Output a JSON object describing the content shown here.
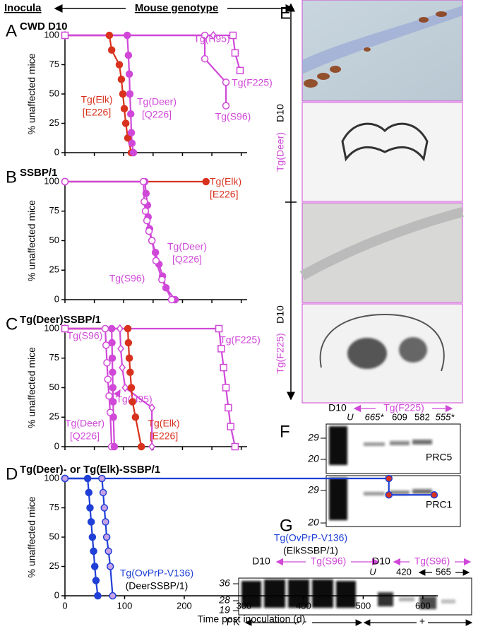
{
  "header": {
    "inocula": "Inocula",
    "genotype": "Mouse genotype"
  },
  "chart_data": [
    {
      "type": "line",
      "panel": "A",
      "title": "CWD D10",
      "y_label": "% unaffected mice",
      "xlim": [
        0,
        620
      ],
      "ylim": [
        0,
        100
      ],
      "xticks": [
        0,
        100,
        200,
        300,
        400,
        500,
        600
      ],
      "xtick_labels": false,
      "yticks": [
        0,
        25,
        50,
        75,
        100
      ],
      "series": [
        {
          "name": "Tg(Elk)",
          "allele": "[E226]",
          "color": "#d8321e",
          "marker": "filled-circle",
          "marker_fill": "#d8321e",
          "x": [
            0,
            151,
            159,
            185,
            192,
            197,
            202,
            207,
            214,
            226
          ],
          "values": [
            100,
            100,
            87.5,
            75,
            62.5,
            50,
            37.5,
            25,
            12.5,
            0
          ]
        },
        {
          "name": "Tg(Deer)",
          "allele": "[Q226]",
          "color": "#d048d8",
          "marker": "filled-circle",
          "marker_fill": "#d048d8",
          "x": [
            0,
            212,
            216,
            219,
            221,
            224,
            226,
            228,
            233
          ],
          "values": [
            100,
            100,
            83,
            67,
            50,
            33,
            17,
            8,
            0
          ]
        },
        {
          "name": "Tg(S96)",
          "color": "#d048d8",
          "marker": "open-circle",
          "marker_fill": "#ffffff",
          "x": [
            0,
            476,
            476,
            548,
            548
          ],
          "values": [
            100,
            100,
            80,
            60,
            40
          ]
        },
        {
          "name": "Tg(H95)",
          "color": "#d048d8",
          "marker": "open-diamond",
          "marker_fill": "#ffffff",
          "x": [
            0,
            505
          ],
          "values": [
            100,
            100
          ]
        },
        {
          "name": "Tg(F225)",
          "color": "#d048d8",
          "marker": "open-square",
          "marker_fill": "#ffffff",
          "x": [
            0,
            572,
            579,
            596
          ],
          "values": [
            100,
            100,
            85,
            70
          ]
        }
      ]
    },
    {
      "type": "line",
      "panel": "B",
      "title": "SSBP/1",
      "y_label": "% unaffected mice",
      "xlim": [
        0,
        620
      ],
      "ylim": [
        0,
        100
      ],
      "xticks": [
        0,
        100,
        200,
        300,
        400,
        500,
        600
      ],
      "xtick_labels": false,
      "yticks": [
        0,
        25,
        50,
        75,
        100
      ],
      "series": [
        {
          "name": "Tg(Elk)",
          "allele": "[E226]",
          "color": "#d8321e",
          "marker": "filled-circle",
          "marker_fill": "#d8321e",
          "x": [
            0,
            480
          ],
          "values": [
            100,
            100
          ]
        },
        {
          "name": "Tg(Deer)",
          "allele": "[Q226]",
          "color": "#d048d8",
          "marker": "filled-circle",
          "marker_fill": "#d048d8",
          "x": [
            0,
            272,
            276,
            281,
            283,
            288,
            296,
            308,
            320,
            332,
            344,
            375
          ],
          "values": [
            100,
            100,
            90,
            80,
            70,
            60,
            50,
            40,
            30,
            20,
            10,
            0
          ]
        },
        {
          "name": "Tg(S96)",
          "color": "#d048d8",
          "marker": "open-circle",
          "marker_fill": "#ffffff",
          "x": [
            0,
            267,
            270,
            274,
            279,
            286,
            296,
            310,
            330,
            363
          ],
          "values": [
            100,
            100,
            83,
            75,
            67,
            58,
            50,
            33,
            17,
            0
          ]
        }
      ]
    },
    {
      "type": "line",
      "panel": "C",
      "title": "Tg(Deer)SSBP/1",
      "y_label": "% unaffected mice",
      "xlim": [
        0,
        620
      ],
      "ylim": [
        0,
        100
      ],
      "xticks": [
        0,
        100,
        200,
        300,
        400,
        500,
        600
      ],
      "xtick_labels": false,
      "yticks": [
        0,
        25,
        50,
        75,
        100
      ],
      "series": [
        {
          "name": "Tg(S96)",
          "color": "#d048d8",
          "marker": "open-circle",
          "marker_fill": "#ffffff",
          "x": [
            0,
            137,
            140,
            143,
            146,
            150,
            154,
            159
          ],
          "values": [
            100,
            100,
            86,
            71,
            57,
            43,
            29,
            0
          ]
        },
        {
          "name": "Tg(Deer)",
          "allele": "[Q226]",
          "color": "#d048d8",
          "marker": "filled-circle",
          "marker_fill": "#d048d8",
          "x": [
            0,
            159,
            160,
            161,
            162,
            163,
            164,
            165,
            168
          ],
          "values": [
            100,
            100,
            88,
            75,
            63,
            50,
            38,
            25,
            0
          ]
        },
        {
          "name": "Tg(H95)",
          "color": "#d048d8",
          "marker": "open-diamond",
          "marker_fill": "#ffffff",
          "x": [
            0,
            187,
            190,
            195,
            205,
            296,
            296
          ],
          "values": [
            100,
            100,
            83,
            67,
            50,
            33,
            0
          ]
        },
        {
          "name": "Tg(Elk)",
          "allele": "[E226]",
          "color": "#d8321e",
          "marker": "filled-circle",
          "marker_fill": "#d8321e",
          "x": [
            0,
            214,
            216,
            219,
            222,
            226,
            230,
            240,
            260
          ],
          "values": [
            100,
            100,
            88,
            75,
            63,
            50,
            38,
            25,
            0
          ]
        },
        {
          "name": "Tg(F225)",
          "color": "#d048d8",
          "marker": "open-square",
          "marker_fill": "#ffffff",
          "x": [
            0,
            524,
            532,
            540,
            548,
            556,
            564,
            579
          ],
          "values": [
            100,
            100,
            83,
            67,
            50,
            33,
            17,
            0
          ]
        }
      ]
    },
    {
      "type": "line",
      "panel": "D",
      "title": "Tg(Deer)- or Tg(Elk)-SSBP/1",
      "y_label": "% unaffected mice",
      "x_label": "Time post inoculation (d)",
      "xlim": [
        0,
        625
      ],
      "ylim": [
        0,
        100
      ],
      "xticks": [
        0,
        100,
        200,
        300,
        400,
        500,
        600
      ],
      "xtick_labels": true,
      "yticks": [
        0,
        25,
        50,
        75,
        100
      ],
      "series": [
        {
          "name": "Tg(OvPrP-V136)",
          "source": "(ElkSSBP/1)",
          "color": "#1f3fd6",
          "marker": "filled-circle",
          "marker_fill": "#d8321e",
          "x": [
            0,
            543,
            543,
            619
          ],
          "values": [
            100,
            100,
            86,
            86
          ]
        },
        {
          "name": "Tg(OvPrP-V136)",
          "source": "(DeerSSBP/1)",
          "color": "#1f3fd6",
          "marker": "filled-circle",
          "marker_fill": "#1f3fd6",
          "x": [
            0,
            38,
            40,
            42,
            44,
            46,
            48,
            50,
            52,
            55
          ],
          "values": [
            100,
            100,
            88,
            75,
            63,
            50,
            38,
            25,
            13,
            0
          ]
        },
        {
          "color": "#1f3fd6",
          "marker": "filled-circle",
          "marker_fill": "#c9a2e6",
          "x": [
            0,
            62,
            64,
            66,
            68,
            70,
            73,
            76,
            80
          ],
          "values": [
            100,
            100,
            88,
            75,
            63,
            50,
            38,
            25,
            0
          ]
        }
      ]
    }
  ],
  "panels": {
    "E": {
      "letter": "E",
      "arrow_labels": [
        {
          "inoculum": "D10",
          "genotype": "Tg(Deer)"
        },
        {
          "inoculum": "D10",
          "genotype": "Tg(F225)"
        }
      ]
    },
    "F": {
      "letter": "F",
      "inoculum": "D10",
      "genotype": "Tg(F225)",
      "lanes": [
        "U",
        "665*",
        "609",
        "582",
        "555*"
      ],
      "blots": [
        {
          "antibody": "PRC5",
          "markers": [
            29,
            20
          ]
        },
        {
          "antibody": "PRC1",
          "markers": [
            29,
            20
          ]
        }
      ]
    },
    "G": {
      "letter": "G",
      "groups": [
        {
          "inoculum": "D10",
          "genotype": "Tg(S96)"
        },
        {
          "inoculum": "D10",
          "genotype": "Tg(S96)"
        }
      ],
      "lanes": [
        "U",
        420,
        565
      ],
      "markers": [
        36,
        28,
        19
      ],
      "treatment": "PK",
      "pk": [
        "-",
        "+"
      ]
    }
  }
}
